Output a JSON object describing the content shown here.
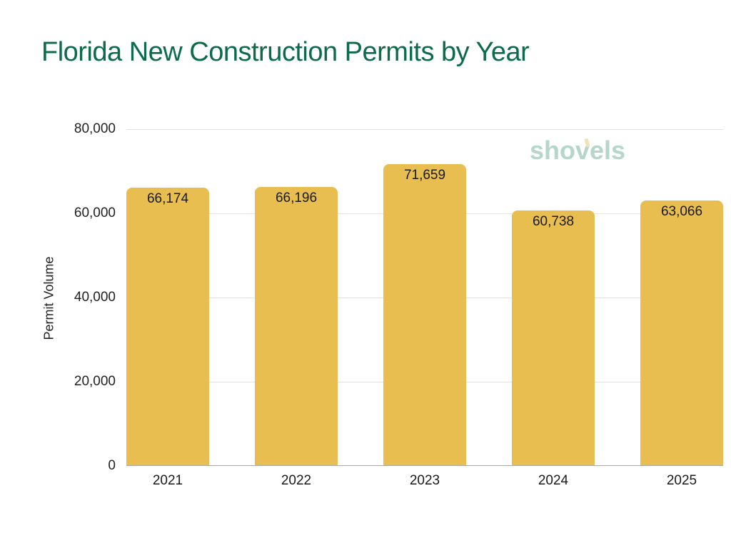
{
  "title": "Florida New Construction Permits by Year",
  "watermark": "shovels",
  "colors": {
    "title": "#0b6b4b",
    "bar": "#e8be50",
    "watermark": "#b7d6cb",
    "gridline": "#e2e2e2"
  },
  "axes": {
    "ylabel": "Permit Volume",
    "yticks": [
      "0",
      "20,000",
      "40,000",
      "60,000",
      "80,000"
    ],
    "xticks": [
      "2021",
      "2022",
      "2023",
      "2024",
      "2025"
    ]
  },
  "bars": [
    {
      "year": "2021",
      "value": 66174,
      "label": "66,174"
    },
    {
      "year": "2022",
      "value": 66196,
      "label": "66,196"
    },
    {
      "year": "2023",
      "value": 71659,
      "label": "71,659"
    },
    {
      "year": "2024",
      "value": 60738,
      "label": "60,738"
    },
    {
      "year": "2025",
      "value": 63066,
      "label": "63,066"
    }
  ],
  "chart_data": {
    "type": "bar",
    "title": "Florida New Construction Permits by Year",
    "categories": [
      "2021",
      "2022",
      "2023",
      "2024",
      "2025"
    ],
    "values": [
      66174,
      66196,
      71659,
      60738,
      63066
    ],
    "data_labels": [
      "66,174",
      "66,196",
      "71,659",
      "60,738",
      "63,066"
    ],
    "xlabel": "",
    "ylabel": "Permit Volume",
    "ylim": [
      0,
      80000
    ],
    "yticks": [
      0,
      20000,
      40000,
      60000,
      80000
    ],
    "grid": true,
    "legend": null,
    "bar_color": "#e8be50",
    "annotations": [
      "shovels (watermark logo)"
    ]
  }
}
